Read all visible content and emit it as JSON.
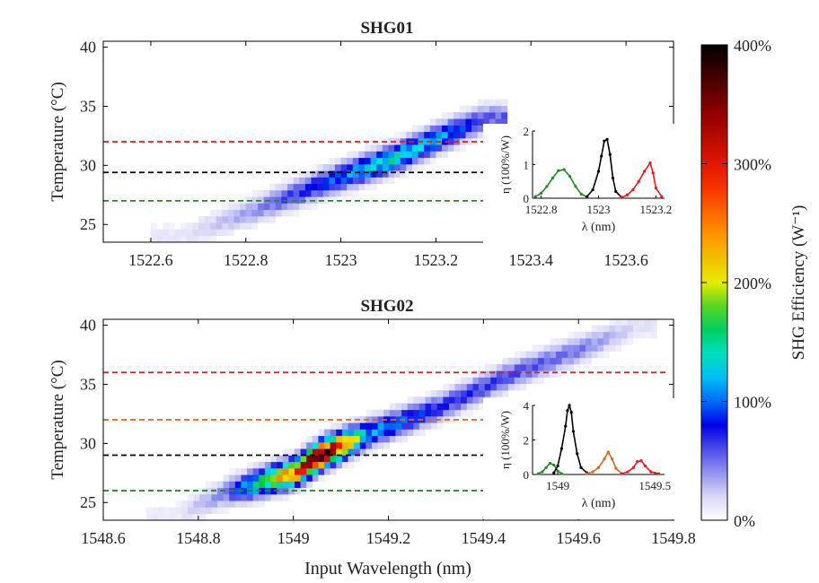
{
  "figure": {
    "colorbar": {
      "label": "SHG Efficiency (W⁻¹)",
      "ticks": [
        "0%",
        "100%",
        "200%",
        "300%",
        "400%"
      ],
      "tick_values": [
        0,
        100,
        200,
        300,
        400
      ],
      "range": [
        0,
        400
      ]
    },
    "xlabel": "Input Wavelength (nm)"
  },
  "chart_data": [
    {
      "type": "heatmap",
      "title": "SHG01",
      "xlabel": "",
      "ylabel": "Temperature (°C)",
      "xlim": [
        1522.5,
        1523.7
      ],
      "ylim": [
        23.5,
        40.5
      ],
      "xticks": [
        1522.6,
        1522.8,
        1523,
        1523.2,
        1523.4,
        1523.6
      ],
      "xticklabels": [
        "1522.6",
        "1522.8",
        "1523",
        "1523.2",
        "1523.4",
        "1523.6"
      ],
      "yticks": [
        25,
        30,
        35,
        40
      ],
      "yticklabels": [
        "25",
        "30",
        "35",
        "40"
      ],
      "ridge": {
        "x": [
          1522.66,
          1522.8,
          1522.95,
          1523.1,
          1523.2,
          1523.3
        ],
        "y": [
          24.0,
          26.0,
          28.4,
          30.5,
          32.3,
          34.0
        ],
        "peak": [
          12,
          35,
          80,
          135,
          110,
          55
        ]
      },
      "hlines": [
        {
          "y": 32,
          "color": "#e41a1c"
        },
        {
          "y": 29.4,
          "color": "#000000"
        },
        {
          "y": 27,
          "color": "#228b22"
        }
      ],
      "inset": {
        "xlabel": "λ (nm)",
        "ylabel": "η (100%/W)",
        "xlim": [
          1522.77,
          1523.23
        ],
        "ylim": [
          0,
          2
        ],
        "xticks": [
          1522.8,
          1523,
          1523.2
        ],
        "xticklabels": [
          "1522.8",
          "1523",
          "1523.2"
        ],
        "yticks": [
          0,
          1,
          2
        ],
        "yticklabels": [
          "0",
          "1",
          "2"
        ],
        "series": [
          {
            "color": "#228b22",
            "x": [
              1522.78,
              1522.8,
              1522.82,
              1522.84,
              1522.86,
              1522.88,
              1522.9,
              1522.92,
              1522.94,
              1522.96
            ],
            "y": [
              0.05,
              0.15,
              0.35,
              0.6,
              0.82,
              0.85,
              0.65,
              0.35,
              0.12,
              0.04
            ]
          },
          {
            "color": "#000000",
            "x": [
              1522.96,
              1522.98,
              1523.0,
              1523.01,
              1523.02,
              1523.03,
              1523.04,
              1523.05,
              1523.06,
              1523.08
            ],
            "y": [
              0.05,
              0.25,
              0.8,
              1.25,
              1.7,
              1.75,
              1.3,
              0.6,
              0.2,
              0.03
            ]
          },
          {
            "color": "#e41a1c",
            "x": [
              1523.08,
              1523.1,
              1523.12,
              1523.14,
              1523.16,
              1523.18,
              1523.19,
              1523.2,
              1523.22
            ],
            "y": [
              0.02,
              0.1,
              0.25,
              0.5,
              0.8,
              1.05,
              0.75,
              0.3,
              0.05
            ]
          }
        ]
      }
    },
    {
      "type": "heatmap",
      "title": "SHG02",
      "xlabel": "Input Wavelength (nm)",
      "ylabel": "Temperature (°C)",
      "xlim": [
        1548.6,
        1549.8
      ],
      "ylim": [
        23.5,
        40.5
      ],
      "xticks": [
        1548.6,
        1548.8,
        1549,
        1549.2,
        1549.4,
        1549.6,
        1549.8
      ],
      "xticklabels": [
        "1548.6",
        "1548.8",
        "1549",
        "1549.2",
        "1549.4",
        "1549.6",
        "1549.8"
      ],
      "yticks": [
        25,
        30,
        35,
        40
      ],
      "yticklabels": [
        "25",
        "30",
        "35",
        "40"
      ],
      "ridge": {
        "x": [
          1548.75,
          1548.85,
          1549.0,
          1549.05,
          1549.15,
          1549.3,
          1549.45,
          1549.6,
          1549.72
        ],
        "y": [
          24.0,
          25.8,
          27.6,
          29.0,
          30.8,
          33.0,
          35.8,
          38.0,
          40.0
        ],
        "peak": [
          10,
          45,
          260,
          390,
          110,
          70,
          60,
          45,
          15
        ]
      },
      "hlines": [
        {
          "y": 36,
          "color": "#e41a1c"
        },
        {
          "y": 32,
          "color": "#d2691e"
        },
        {
          "y": 29,
          "color": "#000000"
        },
        {
          "y": 26,
          "color": "#228b22"
        }
      ],
      "inset": {
        "xlabel": "λ (nm)",
        "ylabel": "η (100%/W)",
        "xlim": [
          1548.87,
          1549.55
        ],
        "ylim": [
          0,
          4
        ],
        "xticks": [
          1549,
          1549.5
        ],
        "xticklabels": [
          "1549",
          "1549.5"
        ],
        "yticks": [
          0,
          2,
          4
        ],
        "yticklabels": [
          "0",
          "2",
          "4"
        ],
        "series": [
          {
            "color": "#228b22",
            "x": [
              1548.9,
              1548.92,
              1548.94,
              1548.96,
              1548.98,
              1549.0,
              1549.02
            ],
            "y": [
              0.05,
              0.15,
              0.4,
              0.65,
              0.55,
              0.2,
              0.05
            ]
          },
          {
            "color": "#000000",
            "x": [
              1548.98,
              1549.0,
              1549.02,
              1549.04,
              1549.05,
              1549.06,
              1549.07,
              1549.08,
              1549.1,
              1549.12,
              1549.15
            ],
            "y": [
              0.1,
              0.5,
              1.5,
              2.8,
              3.7,
              4.0,
              3.6,
              2.5,
              1.2,
              0.4,
              0.1
            ]
          },
          {
            "color": "#d2691e",
            "x": [
              1549.15,
              1549.18,
              1549.21,
              1549.24,
              1549.26,
              1549.28,
              1549.3,
              1549.33
            ],
            "y": [
              0.05,
              0.15,
              0.4,
              0.9,
              1.3,
              0.9,
              0.35,
              0.05
            ]
          },
          {
            "color": "#e41a1c",
            "x": [
              1549.33,
              1549.36,
              1549.39,
              1549.41,
              1549.43,
              1549.45,
              1549.48,
              1549.52
            ],
            "y": [
              0.05,
              0.15,
              0.4,
              0.75,
              0.8,
              0.5,
              0.15,
              0.05
            ]
          }
        ]
      }
    }
  ]
}
